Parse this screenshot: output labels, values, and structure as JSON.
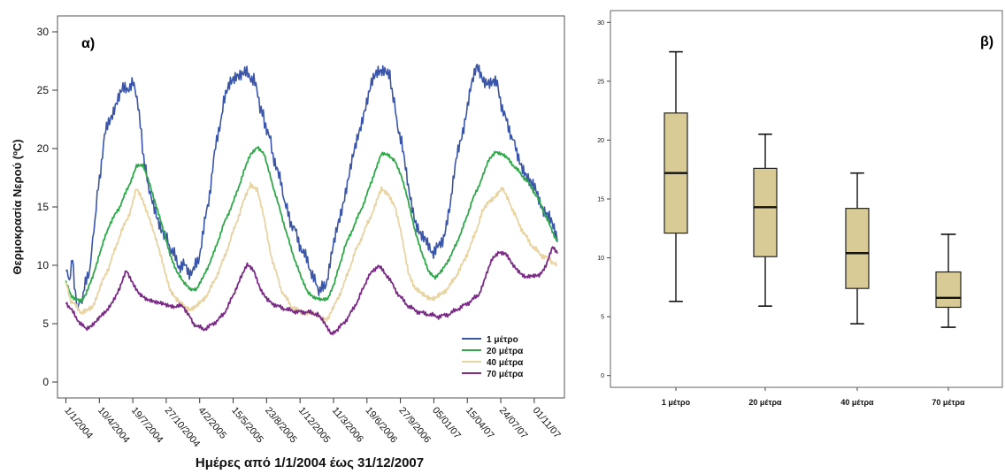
{
  "chart_data": [
    {
      "panel_label": "α)",
      "type": "line",
      "ylabel": "Θερμοκρασία Νερού (ºC)",
      "xlabel": "Ημέρες από 1/1/2004 έως 31/12/2007",
      "ylim": [
        0,
        30
      ],
      "yticks": [
        "0",
        "5",
        "10",
        "15",
        "20",
        "25",
        "30"
      ],
      "xticks": [
        "1/1/2004",
        "10/4/2004",
        "19/7/2004",
        "27/10/2004",
        "4/2/2005",
        "15/5/2005",
        "23/8/2005",
        "1/12/2005",
        "11/3/2006",
        "19/6/2006",
        "27/9/2006",
        "05/01/07",
        "15/04/07",
        "24/07/07",
        "01/11/07"
      ],
      "x_unit": "days since 1/1/2004",
      "xlim": [
        -25,
        1485
      ],
      "legend_position": "bottom-right",
      "series": [
        {
          "name": "1 μέτρο",
          "color": "#3a55a8",
          "x": [
            0,
            10,
            20,
            25,
            35,
            45,
            55,
            70,
            80,
            90,
            100,
            115,
            130,
            150,
            170,
            200,
            215,
            225,
            235,
            245,
            255,
            275,
            295,
            320,
            335,
            350,
            365,
            380,
            395,
            410,
            425,
            440,
            455,
            470,
            490,
            510,
            530,
            560,
            575,
            585,
            595,
            610,
            620,
            640,
            665,
            690,
            705,
            720,
            735,
            750,
            760,
            775,
            790,
            810,
            830,
            850,
            870,
            890,
            910,
            930,
            950,
            965,
            975,
            985,
            1000,
            1020,
            1040,
            1060,
            1080,
            1095,
            1110,
            1125,
            1145,
            1165,
            1185,
            1205,
            1225,
            1245,
            1265,
            1285,
            1300,
            1315,
            1330,
            1340,
            1360,
            1380,
            1400,
            1420,
            1440,
            1460,
            1464
          ],
          "y": [
            9.5,
            8.8,
            10.5,
            8,
            6.5,
            6.8,
            8,
            9.5,
            12,
            15,
            17.5,
            21,
            22.5,
            24,
            25,
            25.5,
            24,
            21,
            18.5,
            17,
            15.5,
            14,
            12.5,
            11,
            10,
            10,
            9.5,
            9.5,
            10.5,
            13,
            15.5,
            19,
            21.5,
            24,
            25.5,
            26.5,
            26.5,
            26,
            24,
            23,
            22,
            20.5,
            19,
            17,
            14,
            12.5,
            11,
            10.5,
            9,
            8,
            7.8,
            8.5,
            10.5,
            13.5,
            16,
            18.5,
            21,
            23.5,
            25.5,
            26.5,
            27,
            26,
            24.5,
            22.5,
            20.5,
            16.5,
            14,
            12.5,
            11.5,
            11.2,
            11.5,
            12.5,
            15,
            19.5,
            22,
            25,
            27,
            26,
            25.5,
            25.5,
            23.5,
            22,
            21,
            20,
            18.5,
            17,
            16.5,
            15,
            14,
            12.5,
            12
          ]
        },
        {
          "name": "20 μέτρα",
          "color": "#2fa84a",
          "x": [
            0,
            15,
            30,
            45,
            60,
            80,
            100,
            130,
            160,
            190,
            210,
            230,
            250,
            270,
            290,
            310,
            330,
            350,
            370,
            390,
            410,
            440,
            470,
            500,
            530,
            550,
            570,
            590,
            610,
            640,
            670,
            700,
            720,
            740,
            760,
            780,
            800,
            830,
            860,
            890,
            920,
            940,
            960,
            980,
            1000,
            1020,
            1040,
            1060,
            1080,
            1100,
            1120,
            1150,
            1180,
            1210,
            1240,
            1260,
            1280,
            1300,
            1320,
            1350,
            1380,
            1410,
            1440,
            1464
          ],
          "y": [
            8.5,
            7.5,
            7,
            7,
            7.5,
            9,
            11,
            13.5,
            15,
            17,
            18.5,
            18.5,
            17,
            15,
            13,
            11,
            9.5,
            8.5,
            8,
            8,
            9,
            11,
            13.5,
            15.5,
            18,
            19.5,
            20.2,
            19.5,
            17.5,
            14.5,
            11.5,
            9,
            7.8,
            7.2,
            7,
            7.2,
            8.5,
            11.5,
            13.5,
            15.5,
            18,
            19.5,
            19.5,
            19,
            17.5,
            15.5,
            13,
            11,
            9.5,
            9,
            9.5,
            11,
            13,
            15.5,
            17.5,
            19,
            19.8,
            19.5,
            19,
            18,
            17,
            15.5,
            13.5,
            12
          ]
        },
        {
          "name": "40 μέτρα",
          "color": "#e8d3a2",
          "x": [
            0,
            15,
            30,
            45,
            60,
            80,
            100,
            130,
            160,
            190,
            210,
            230,
            250,
            270,
            290,
            310,
            330,
            350,
            370,
            390,
            410,
            440,
            470,
            500,
            530,
            550,
            570,
            590,
            610,
            640,
            670,
            700,
            720,
            740,
            760,
            780,
            800,
            830,
            860,
            890,
            920,
            940,
            960,
            980,
            1000,
            1020,
            1040,
            1060,
            1080,
            1100,
            1120,
            1150,
            1180,
            1210,
            1240,
            1260,
            1280,
            1300,
            1320,
            1350,
            1380,
            1410,
            1440,
            1464
          ],
          "y": [
            8.5,
            7,
            6.5,
            6,
            6,
            6.5,
            8,
            10,
            12.5,
            14.5,
            16.5,
            15.5,
            14,
            12,
            10,
            8,
            7,
            6.5,
            6.3,
            6.5,
            7,
            8.5,
            10.5,
            13,
            15.5,
            17,
            16.5,
            14,
            11,
            8,
            6.5,
            6,
            6,
            5.8,
            5.5,
            5.5,
            6.5,
            8.5,
            11,
            13,
            15,
            16.5,
            16.2,
            15,
            12.5,
            9.5,
            8,
            7.5,
            7.3,
            7.2,
            7.5,
            8.5,
            10,
            12,
            14.5,
            15.5,
            16,
            16.5,
            15.5,
            13.5,
            12,
            11,
            10.5,
            10
          ]
        },
        {
          "name": "70 μέτρα",
          "color": "#7b2a86",
          "x": [
            0,
            15,
            30,
            45,
            60,
            80,
            100,
            120,
            140,
            160,
            180,
            200,
            220,
            240,
            260,
            280,
            300,
            320,
            350,
            380,
            410,
            440,
            470,
            500,
            520,
            540,
            560,
            580,
            600,
            630,
            660,
            690,
            720,
            750,
            770,
            790,
            810,
            840,
            870,
            900,
            930,
            960,
            990,
            1020,
            1050,
            1080,
            1110,
            1140,
            1170,
            1200,
            1230,
            1250,
            1270,
            1290,
            1310,
            1330,
            1350,
            1370,
            1390,
            1410,
            1430,
            1450,
            1464
          ],
          "y": [
            6.8,
            6.3,
            5.5,
            5,
            4.5,
            5,
            5.5,
            6,
            7,
            8,
            9.5,
            8.5,
            7.5,
            7,
            7,
            6.8,
            6.5,
            6.5,
            6.5,
            5,
            4.5,
            5,
            5.8,
            7.5,
            9,
            10,
            9.5,
            8,
            7,
            6.5,
            6.2,
            6,
            6,
            5.8,
            5,
            4.2,
            4.5,
            5.5,
            7,
            9,
            10,
            9,
            7.5,
            6.5,
            6,
            5.8,
            5.6,
            5.8,
            6.3,
            6.8,
            7.5,
            9,
            10.5,
            11.2,
            11,
            10,
            9.5,
            9,
            9,
            9.2,
            10,
            11.5,
            11
          ]
        }
      ]
    },
    {
      "panel_label": "β)",
      "type": "box",
      "ylim": [
        -1,
        31
      ],
      "yticks": [
        "0",
        "5",
        "10",
        "15",
        "20",
        "25",
        "30"
      ],
      "categories": [
        "1 μέτρο",
        "20 μέτρα",
        "40 μέτρα",
        "70 μέτρα"
      ],
      "box_fill": "#d8cb96",
      "boxes": [
        {
          "min": 6.3,
          "q1": 12.1,
          "median": 17.2,
          "q3": 22.3,
          "max": 27.5
        },
        {
          "min": 5.9,
          "q1": 10.1,
          "median": 14.3,
          "q3": 17.6,
          "max": 20.5
        },
        {
          "min": 4.4,
          "q1": 7.4,
          "median": 10.4,
          "q3": 14.2,
          "max": 17.2
        },
        {
          "min": 4.1,
          "q1": 5.8,
          "median": 6.6,
          "q3": 8.8,
          "max": 12.0
        }
      ]
    }
  ]
}
